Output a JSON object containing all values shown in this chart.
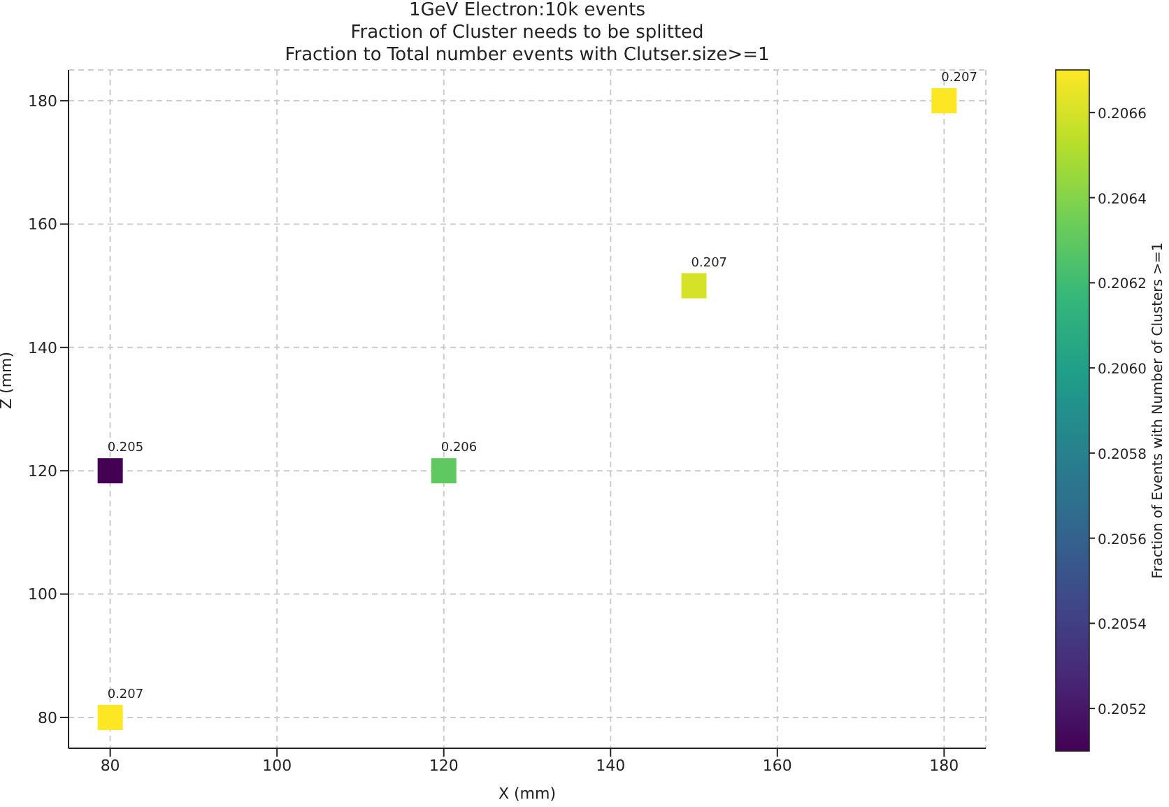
{
  "chart_data": {
    "type": "scatter",
    "title": "1GeV Electron:10k events",
    "subtitle": "Fraction of Cluster needs to be splitted\nFraction to Total number events with Clutser.size>=1",
    "xlabel": "X (mm)",
    "ylabel": "Z (mm)",
    "clabel": "Fraction of Events with Number of Clusters >=1",
    "x": [
      80,
      80,
      120,
      150,
      180
    ],
    "values": [
      80,
      120,
      120,
      150,
      180
    ],
    "cvalues": [
      0.2067,
      0.2051,
      0.2063,
      0.2066,
      0.2067
    ],
    "annotations": [
      {
        "text": "0.207",
        "x": 80,
        "y": 80
      },
      {
        "text": "0.205",
        "x": 80,
        "y": 120
      },
      {
        "text": "0.206",
        "x": 120,
        "y": 120
      },
      {
        "text": "0.207",
        "x": 150,
        "y": 150
      },
      {
        "text": "0.207",
        "x": 180,
        "y": 180
      }
    ],
    "clim": [
      0.2051,
      0.2067
    ],
    "cticks": [
      {
        "value": 0.2052,
        "label": "0.2052"
      },
      {
        "value": 0.2054,
        "label": "0.2054"
      },
      {
        "value": 0.2056,
        "label": "0.2056"
      },
      {
        "value": 0.2058,
        "label": "0.2058"
      },
      {
        "value": 0.206,
        "label": "0.2060"
      },
      {
        "value": 0.2062,
        "label": "0.2062"
      },
      {
        "value": 0.2064,
        "label": "0.2064"
      },
      {
        "value": 0.2066,
        "label": "0.2066"
      }
    ],
    "xlim": [
      75,
      185
    ],
    "xticks": [
      80,
      100,
      120,
      140,
      160,
      180
    ],
    "ylim": [
      75,
      185
    ],
    "yticks": [
      80,
      100,
      120,
      140,
      160,
      180
    ],
    "grid": true,
    "marker": "square"
  }
}
